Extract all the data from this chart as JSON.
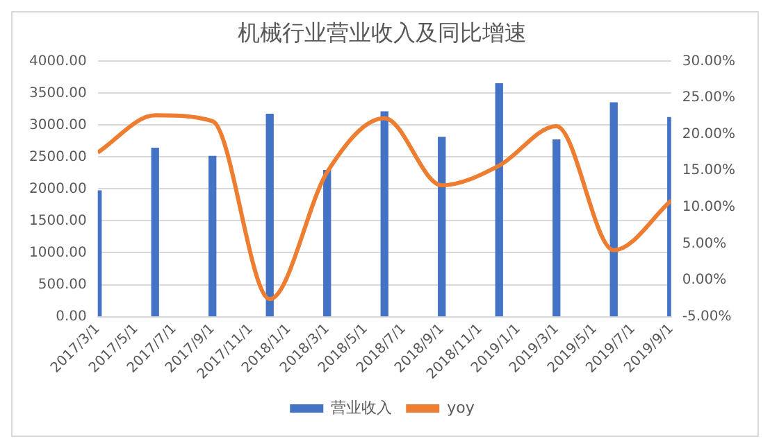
{
  "chart_data": {
    "type": "bar",
    "title": "机械行业营业收入及同比增速",
    "x": [
      "2017-03",
      "2017-06",
      "2017-09",
      "2017-12",
      "2018-03",
      "2018-06",
      "2018-09",
      "2018-12",
      "2019-03",
      "2019-06",
      "2019-09"
    ],
    "xlim": [
      "2017-03",
      "2019-09"
    ],
    "xticks": [
      {
        "value": "2017-03",
        "label": "2017/3/1"
      },
      {
        "value": "2017-05",
        "label": "2017/5/1"
      },
      {
        "value": "2017-07",
        "label": "2017/7/1"
      },
      {
        "value": "2017-09",
        "label": "2017/9/1"
      },
      {
        "value": "2017-11",
        "label": "2017/11/1"
      },
      {
        "value": "2018-01",
        "label": "2018/1/1"
      },
      {
        "value": "2018-03",
        "label": "2018/3/1"
      },
      {
        "value": "2018-05",
        "label": "2018/5/1"
      },
      {
        "value": "2018-07",
        "label": "2018/7/1"
      },
      {
        "value": "2018-09",
        "label": "2018/9/1"
      },
      {
        "value": "2018-11",
        "label": "2018/11/1"
      },
      {
        "value": "2019-01",
        "label": "2019/1/1"
      },
      {
        "value": "2019-03",
        "label": "2019/3/1"
      },
      {
        "value": "2019-05",
        "label": "2019/5/1"
      },
      {
        "value": "2019-07",
        "label": "2019/7/1"
      },
      {
        "value": "2019-09",
        "label": "2019/9/1"
      }
    ],
    "series": [
      {
        "name": "营业收入",
        "color": "#4472c4",
        "values": [
          1970,
          2640,
          2510,
          3170,
          2290,
          3210,
          2810,
          3650,
          2770,
          3350,
          3120
        ]
      },
      {
        "name": "yoy",
        "type": "line",
        "axis": "y2",
        "color": "#ed7d31",
        "marker": "none",
        "values": [
          17.5,
          22.6,
          21.8,
          -2.6,
          14.8,
          22.2,
          13.0,
          15.7,
          21.1,
          4.1,
          10.9
        ]
      }
    ],
    "ylim": [
      0,
      4000
    ],
    "yticks": [
      {
        "value": 0,
        "label": "0.00"
      },
      {
        "value": 500,
        "label": "500.00"
      },
      {
        "value": 1000,
        "label": "1000.00"
      },
      {
        "value": 1500,
        "label": "1500.00"
      },
      {
        "value": 2000,
        "label": "2000.00"
      },
      {
        "value": 2500,
        "label": "2500.00"
      },
      {
        "value": 3000,
        "label": "3000.00"
      },
      {
        "value": 3500,
        "label": "3500.00"
      },
      {
        "value": 4000,
        "label": "4000.00"
      }
    ],
    "y2lim": [
      -5,
      30
    ],
    "y2ticks": [
      {
        "value": -5,
        "label": "-5.00%"
      },
      {
        "value": 0,
        "label": "0.00%"
      },
      {
        "value": 5,
        "label": "5.00%"
      },
      {
        "value": 10,
        "label": "10.00%"
      },
      {
        "value": 15,
        "label": "15.00%"
      },
      {
        "value": 20,
        "label": "20.00%"
      },
      {
        "value": 25,
        "label": "25.00%"
      },
      {
        "value": 30,
        "label": "30.00%"
      }
    ],
    "grid": "y",
    "legend": "bottom"
  }
}
